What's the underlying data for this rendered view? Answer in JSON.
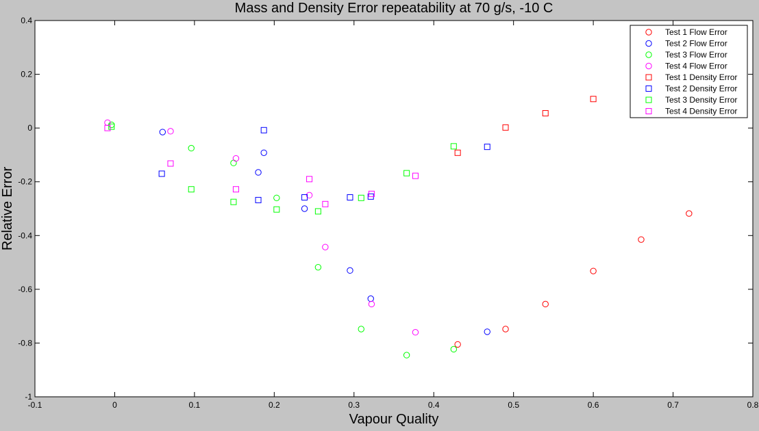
{
  "chart_data": {
    "type": "scatter",
    "title": "Mass and Density Error repeatability at 70 g/s, -10 C",
    "xlabel": "Vapour Quality",
    "ylabel": "Relative Error",
    "xlim": [
      -0.1,
      0.8
    ],
    "ylim": [
      -1,
      0.4
    ],
    "xticks": [
      -0.1,
      0,
      0.1,
      0.2,
      0.3,
      0.4,
      0.5,
      0.6,
      0.7,
      0.8
    ],
    "xtick_labels": [
      "-0.1",
      "0",
      "0.1",
      "0.2",
      "0.3",
      "0.4",
      "0.5",
      "0.6",
      "0.7",
      "0.8"
    ],
    "yticks": [
      -1,
      -0.8,
      -0.6,
      -0.4,
      -0.2,
      0,
      0.2,
      0.4
    ],
    "ytick_labels": [
      "-1",
      "-0.8",
      "-0.6",
      "-0.4",
      "-0.2",
      "0",
      "0.2",
      "0.4"
    ],
    "grid": false,
    "legend_position": "top-right",
    "series": [
      {
        "name": "Test 1 Flow Error",
        "marker": "circle",
        "color": "#ff0000",
        "x": [
          0.43,
          0.49,
          0.54,
          0.6,
          0.66,
          0.72
        ],
        "y": [
          -0.805,
          -0.748,
          -0.655,
          -0.532,
          -0.415,
          -0.318
        ]
      },
      {
        "name": "Test 2 Flow Error",
        "marker": "circle",
        "color": "#0000ff",
        "x": [
          0.06,
          0.18,
          0.187,
          0.238,
          0.295,
          0.321,
          0.467
        ],
        "y": [
          -0.015,
          -0.165,
          -0.092,
          -0.3,
          -0.53,
          -0.635,
          -0.758
        ]
      },
      {
        "name": "Test 3 Flow Error",
        "marker": "circle",
        "color": "#00ff00",
        "x": [
          -0.004,
          0.096,
          0.149,
          0.203,
          0.255,
          0.309,
          0.366,
          0.425
        ],
        "y": [
          0.012,
          -0.075,
          -0.13,
          -0.26,
          -0.518,
          -0.748,
          -0.845,
          -0.823
        ]
      },
      {
        "name": "Test 4 Flow Error",
        "marker": "circle",
        "color": "#ff00ff",
        "x": [
          -0.009,
          0.07,
          0.152,
          0.244,
          0.264,
          0.322,
          0.377
        ],
        "y": [
          0.02,
          -0.012,
          -0.113,
          -0.25,
          -0.443,
          -0.655,
          -0.76
        ]
      },
      {
        "name": "Test 1 Density Error",
        "marker": "square",
        "color": "#ff0000",
        "x": [
          0.43,
          0.49,
          0.54,
          0.6
        ],
        "y": [
          -0.092,
          0.002,
          0.055,
          0.108
        ]
      },
      {
        "name": "Test 2 Density Error",
        "marker": "square",
        "color": "#0000ff",
        "x": [
          0.059,
          0.18,
          0.187,
          0.238,
          0.295,
          0.321,
          0.467
        ],
        "y": [
          -0.17,
          -0.268,
          -0.008,
          -0.258,
          -0.258,
          -0.255,
          -0.07
        ]
      },
      {
        "name": "Test 3 Density Error",
        "marker": "square",
        "color": "#00ff00",
        "x": [
          -0.004,
          0.096,
          0.149,
          0.203,
          0.255,
          0.309,
          0.366,
          0.425
        ],
        "y": [
          0.005,
          -0.228,
          -0.275,
          -0.303,
          -0.31,
          -0.26,
          -0.168,
          -0.068
        ]
      },
      {
        "name": "Test 4 Density Error",
        "marker": "square",
        "color": "#ff00ff",
        "x": [
          -0.009,
          0.07,
          0.152,
          0.244,
          0.264,
          0.322,
          0.377
        ],
        "y": [
          0.0,
          -0.132,
          -0.228,
          -0.19,
          -0.283,
          -0.245,
          -0.178
        ]
      }
    ]
  }
}
